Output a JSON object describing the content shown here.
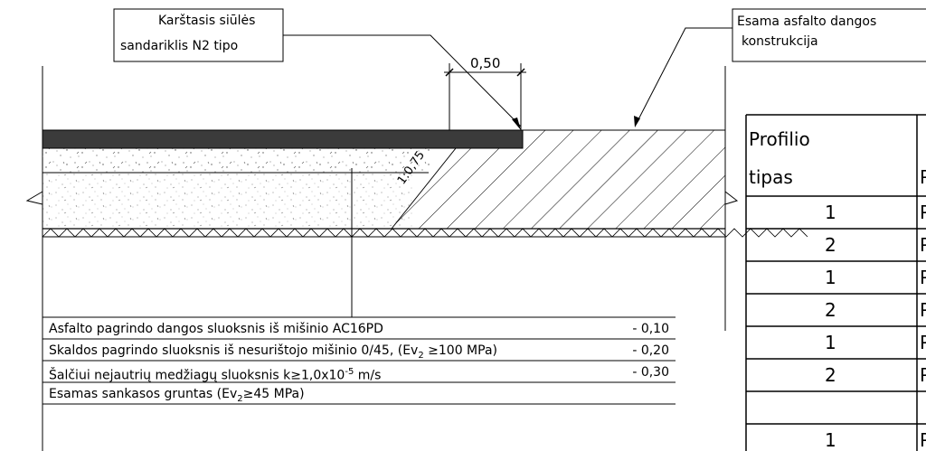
{
  "callouts": {
    "sealant_line1": "Karštasis siūlės",
    "sealant_line2": "sandariklis N2 tipo",
    "existing_line1": "Esama asfalto dangos",
    "existing_line2": "konstrukcija"
  },
  "dimension": {
    "width_label": "0,50",
    "slope_label": "1:0,75"
  },
  "legend": {
    "rows": [
      {
        "text": "Asfalto pagrindo dangos sluoksnis iš mišinio AC16PD",
        "value": "- 0,10"
      },
      {
        "text_pre": "Skaldos pagrindo sluoksnis iš nesurištojo mišinio 0/45, (Ev",
        "text_sub": "2",
        "text_post": " ≥100 MPa)",
        "value": "- 0,20"
      },
      {
        "text_pre": "Šalčiui nejautrių medžiagų sluoksnis k≥1,0x10",
        "text_sup": "-5",
        "text_post": " m/s",
        "value": "- 0,30"
      },
      {
        "text_pre": "Esamas sankasos gruntas (Ev",
        "text_sub": "2",
        "text_post": "≥45 MPa)",
        "value": ""
      }
    ]
  },
  "table": {
    "header_line1": "Profilio",
    "header_line2": "tipas",
    "header_col2_partial": "P",
    "rows": [
      {
        "type": "1",
        "col2": "P"
      },
      {
        "type": "2",
        "col2": "P"
      },
      {
        "type": "1",
        "col2": "P"
      },
      {
        "type": "2",
        "col2": "P"
      },
      {
        "type": "1",
        "col2": "P"
      },
      {
        "type": "2",
        "col2": "P"
      },
      {
        "type": "1",
        "col2": "P"
      }
    ]
  }
}
